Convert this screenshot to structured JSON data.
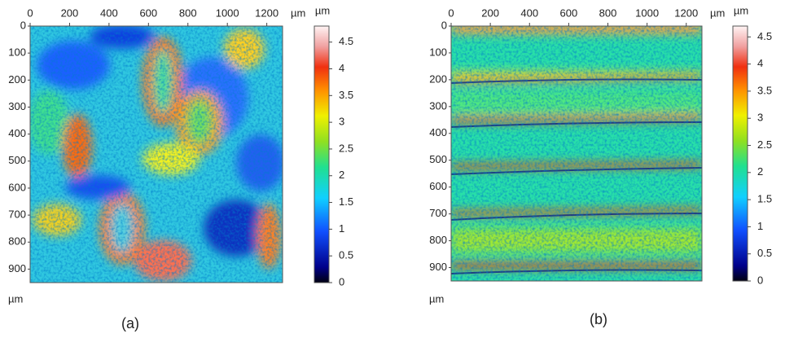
{
  "chart_data": [
    {
      "type": "heatmap",
      "label": "(a)",
      "x_unit": "µm",
      "y_unit": "µm",
      "xlim": [
        0,
        1280
      ],
      "ylim": [
        0,
        950
      ],
      "xticks": [
        0,
        200,
        400,
        600,
        800,
        1000,
        1200
      ],
      "yticks": [
        0,
        100,
        200,
        300,
        400,
        500,
        600,
        700,
        800,
        900
      ],
      "colorbar": {
        "unit": "µm",
        "lim": [
          0,
          4.8
        ],
        "ticks": [
          0,
          0.5,
          1,
          1.5,
          2,
          2.5,
          3,
          3.5,
          4,
          4.5
        ]
      }
    },
    {
      "type": "heatmap",
      "label": "(b)",
      "x_unit": "µm",
      "y_unit": "µm",
      "xlim": [
        0,
        1280
      ],
      "ylim": [
        0,
        950
      ],
      "xticks": [
        0,
        200,
        400,
        600,
        800,
        1000,
        1200
      ],
      "yticks": [
        0,
        100,
        200,
        300,
        400,
        500,
        600,
        700,
        800,
        900
      ],
      "colorbar": {
        "unit": "µm",
        "lim": [
          0,
          4.7
        ],
        "ticks": [
          0,
          0.5,
          1,
          1.5,
          2,
          2.5,
          3,
          3.5,
          4,
          4.5
        ]
      }
    }
  ]
}
